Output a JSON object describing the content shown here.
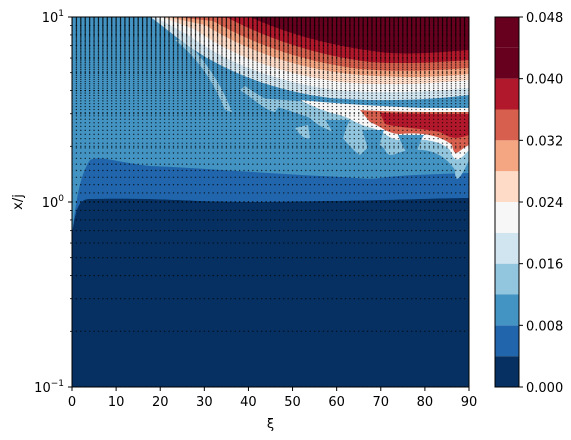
{
  "chart_data": {
    "type": "heatmap",
    "subtype": "filled-contour",
    "xlabel": "ξ",
    "ylabel": "x/j",
    "xlim": [
      0,
      90
    ],
    "ylim": [
      0.1,
      10
    ],
    "yscale": "log",
    "x_ticks": [
      0,
      10,
      20,
      30,
      40,
      50,
      60,
      70,
      80,
      90
    ],
    "x_tick_labels": [
      "0",
      "10",
      "20",
      "30",
      "40",
      "50",
      "60",
      "70",
      "80",
      "90"
    ],
    "y_ticks": [
      0.1,
      1,
      10
    ],
    "y_tick_labels": [
      {
        "base": "10",
        "exp": "−1"
      },
      {
        "base": "10",
        "exp": "0"
      },
      {
        "base": "10",
        "exp": "1"
      }
    ],
    "colorbar": {
      "cmap": "RdBu_r",
      "levels": [
        0.0,
        0.004,
        0.008,
        0.012,
        0.016,
        0.02,
        0.024,
        0.028,
        0.032,
        0.036,
        0.04,
        0.044,
        0.048
      ],
      "tick_values": [
        0.0,
        0.008,
        0.016,
        0.024,
        0.032,
        0.04,
        0.048
      ],
      "tick_labels": [
        "0.000",
        "0.008",
        "0.016",
        "0.024",
        "0.032",
        "0.040",
        "0.048"
      ],
      "colors": [
        "#053061",
        "#2166ac",
        "#4393c3",
        "#92c5de",
        "#d1e5f0",
        "#f7f7f7",
        "#fddbc7",
        "#f4a582",
        "#d6604d",
        "#b2182b",
        "#67001f",
        "#67001f"
      ]
    },
    "regions": [
      {
        "level_band": "0.000-0.004",
        "description_value": 0.002,
        "xi_range": [
          0,
          90
        ],
        "xj_range": [
          0.1,
          1.0
        ]
      },
      {
        "level_band": "0.004-0.008",
        "description_value": 0.006,
        "xi_range": [
          2,
          90
        ],
        "xj_range": [
          1.0,
          1.6
        ]
      },
      {
        "level_band": "0.008-0.012",
        "description_value": 0.01,
        "xi_range": [
          0,
          90
        ],
        "xj_range": [
          1.6,
          10
        ]
      },
      {
        "level_band": "0.036-0.048",
        "description_value": 0.046,
        "xi_range": [
          20,
          90
        ],
        "xj_range": [
          4.5,
          10
        ]
      },
      {
        "level_band": "0.028-0.040",
        "description_value": 0.034,
        "xi_range": [
          66,
          90
        ],
        "xj_range": [
          2.0,
          3.0
        ]
      }
    ],
    "grid_markers": true,
    "legend": "none"
  }
}
